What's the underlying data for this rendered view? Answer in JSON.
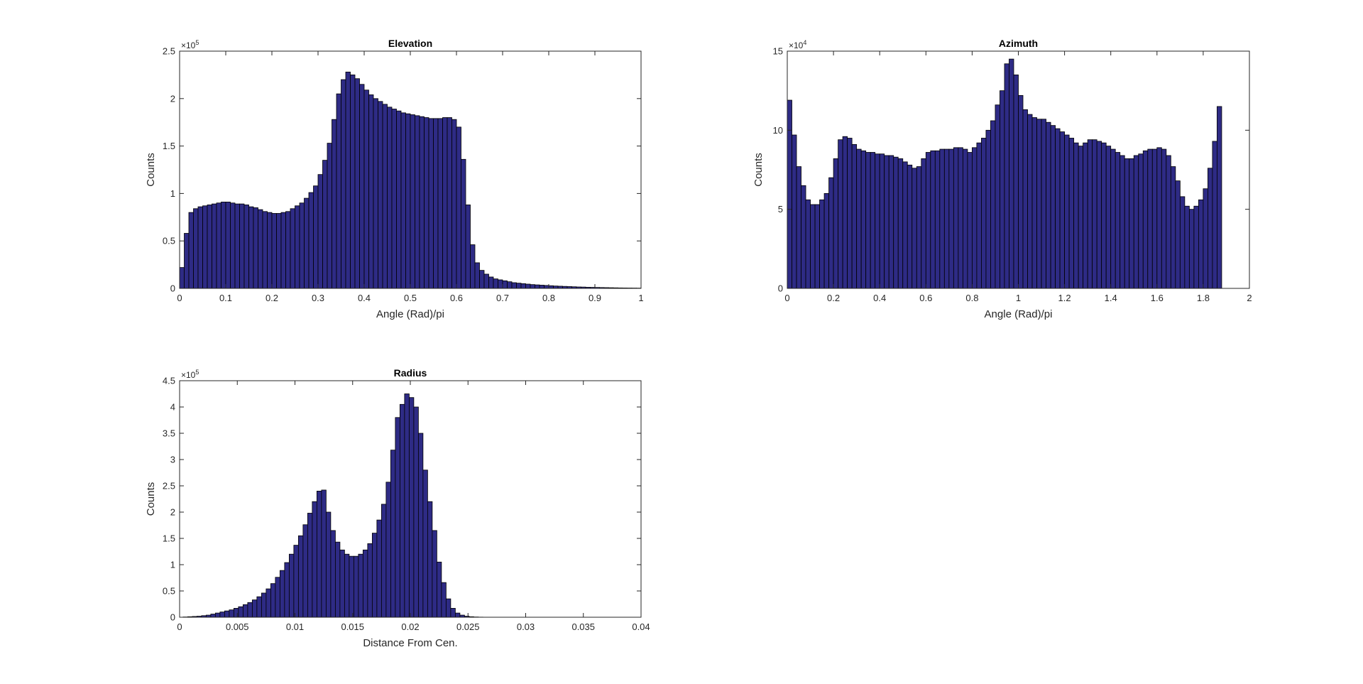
{
  "chart_data": [
    {
      "type": "histogram",
      "title": "Elevation",
      "xlabel": "Angle (Rad)/pi",
      "ylabel": "Counts",
      "xlim": [
        0,
        1
      ],
      "ylim": [
        0,
        250000
      ],
      "y_exponent_label": "×10",
      "y_exponent": "5",
      "x_ticks": [
        0,
        0.1,
        0.2,
        0.3,
        0.4,
        0.5,
        0.6,
        0.7,
        0.8,
        0.9,
        1
      ],
      "x_tick_labels": [
        "0",
        "0.1",
        "0.2",
        "0.3",
        "0.4",
        "0.5",
        "0.6",
        "0.7",
        "0.8",
        "0.9",
        "1"
      ],
      "y_ticks": [
        0,
        50000,
        100000,
        150000,
        200000,
        250000
      ],
      "y_tick_labels": [
        "0",
        "0.5",
        "1",
        "1.5",
        "2",
        "2.5"
      ],
      "bin_edges_start": 0,
      "bin_width": 0.01,
      "bar_color": "#2E2B85",
      "values": [
        22000,
        58000,
        80000,
        84000,
        86000,
        87000,
        88000,
        89000,
        90000,
        91000,
        91000,
        90000,
        89000,
        89000,
        88000,
        86000,
        85000,
        83000,
        81000,
        80000,
        79000,
        79000,
        80000,
        81000,
        84000,
        87000,
        90000,
        95000,
        101000,
        108000,
        120000,
        135000,
        153000,
        178000,
        205000,
        220000,
        228000,
        225000,
        221000,
        215000,
        209000,
        204000,
        200000,
        197000,
        194000,
        191000,
        189000,
        187000,
        185000,
        184000,
        183000,
        182000,
        181000,
        180000,
        179000,
        179000,
        179000,
        180000,
        180000,
        178000,
        170000,
        136000,
        88000,
        46000,
        27000,
        19000,
        15000,
        12000,
        10000,
        9000,
        8000,
        7000,
        6000,
        5500,
        5000,
        4500,
        4000,
        3700,
        3400,
        3100,
        2800,
        2500,
        2300,
        2100,
        1900,
        1700,
        1500,
        1400,
        1200,
        1100,
        1000,
        900,
        800,
        700,
        600,
        500,
        450,
        400,
        350,
        300
      ]
    },
    {
      "type": "histogram",
      "title": "Azimuth",
      "xlabel": "Angle (Rad)/pi",
      "ylabel": "Counts",
      "xlim": [
        0,
        2
      ],
      "ylim": [
        0,
        150000
      ],
      "y_exponent_label": "×10",
      "y_exponent": "4",
      "x_ticks": [
        0,
        0.2,
        0.4,
        0.6,
        0.8,
        1,
        1.2,
        1.4,
        1.6,
        1.8,
        2
      ],
      "x_tick_labels": [
        "0",
        "0.2",
        "0.4",
        "0.6",
        "0.8",
        "1",
        "1.2",
        "1.4",
        "1.6",
        "1.8",
        "2"
      ],
      "y_ticks": [
        0,
        50000,
        100000,
        150000
      ],
      "y_tick_labels": [
        "0",
        "5",
        "10",
        "15"
      ],
      "bin_edges_start": 0,
      "bin_width": 0.02,
      "bar_color": "#2E2B85",
      "values": [
        119000,
        97000,
        77000,
        65000,
        56000,
        53000,
        53000,
        56000,
        60000,
        70000,
        82000,
        94000,
        96000,
        95000,
        91000,
        88000,
        87000,
        86000,
        86000,
        85000,
        85000,
        84000,
        84000,
        83000,
        82000,
        80000,
        78000,
        76000,
        77000,
        82000,
        86000,
        87000,
        87000,
        88000,
        88000,
        88000,
        89000,
        89000,
        88000,
        86000,
        89000,
        92000,
        95000,
        100000,
        106000,
        116000,
        125000,
        142000,
        145000,
        135000,
        122000,
        113000,
        110000,
        108000,
        107000,
        107000,
        105000,
        103000,
        101000,
        99000,
        97000,
        95000,
        92000,
        90000,
        92000,
        94000,
        94000,
        93000,
        92000,
        90000,
        88000,
        86000,
        84000,
        82000,
        82000,
        84000,
        85000,
        87000,
        88000,
        88000,
        89000,
        88000,
        84000,
        77000,
        68000,
        58000,
        52000,
        50000,
        52000,
        56000,
        63000,
        76000,
        93000,
        115000
      ]
    },
    {
      "type": "histogram",
      "title": "Radius",
      "xlabel": "Distance From Cen.",
      "ylabel": "Counts",
      "xlim": [
        0,
        0.04
      ],
      "ylim": [
        0,
        450000
      ],
      "y_exponent_label": "×10",
      "y_exponent": "5",
      "x_ticks": [
        0,
        0.005,
        0.01,
        0.015,
        0.02,
        0.025,
        0.03,
        0.035,
        0.04
      ],
      "x_tick_labels": [
        "0",
        "0.005",
        "0.01",
        "0.015",
        "0.02",
        "0.025",
        "0.03",
        "0.035",
        "0.04"
      ],
      "y_ticks": [
        0,
        50000,
        100000,
        150000,
        200000,
        250000,
        300000,
        350000,
        400000,
        450000
      ],
      "y_tick_labels": [
        "0",
        "0.5",
        "1",
        "1.5",
        "2",
        "2.5",
        "3",
        "3.5",
        "4",
        "4.5"
      ],
      "bin_edges_start": 0.0003,
      "bin_width": 0.0004,
      "bar_color": "#2E2B85",
      "values": [
        500,
        1000,
        1500,
        2000,
        3000,
        4000,
        6000,
        8000,
        10000,
        12000,
        14000,
        17000,
        20000,
        24000,
        28000,
        33000,
        39000,
        46000,
        54000,
        64000,
        76000,
        89000,
        104000,
        120000,
        137000,
        155000,
        176000,
        198000,
        220000,
        240000,
        242000,
        200000,
        165000,
        143000,
        128000,
        120000,
        116000,
        116000,
        120000,
        128000,
        140000,
        160000,
        185000,
        215000,
        257000,
        318000,
        380000,
        405000,
        425000,
        418000,
        400000,
        350000,
        280000,
        220000,
        165000,
        105000,
        66000,
        35000,
        17000,
        8000,
        4000,
        2000,
        1000,
        500,
        250,
        100,
        50
      ]
    }
  ]
}
